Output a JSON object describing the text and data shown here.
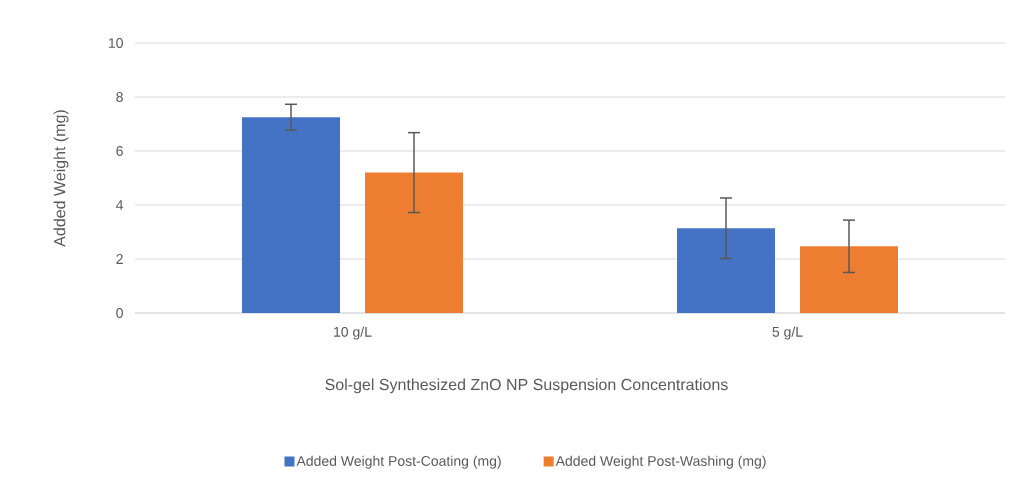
{
  "chart_data": {
    "type": "bar",
    "xlabel": "Sol-gel Synthesized ZnO NP Suspension Concentrations",
    "ylabel": "Added Weight (mg)",
    "categories": [
      "10 g/L",
      "5 g/L"
    ],
    "series": [
      {
        "name": "Added Weight Post-Coating (mg)",
        "color": "#4472c4",
        "values": [
          7.25,
          3.14
        ],
        "errors": [
          0.48,
          1.12
        ]
      },
      {
        "name": "Added Weight Post-Washing (mg)",
        "color": "#ed7d31",
        "values": [
          5.2,
          2.47
        ],
        "errors": [
          1.48,
          0.97
        ]
      }
    ],
    "ylim": [
      0,
      10
    ],
    "yticks": [
      0,
      2,
      4,
      6,
      8,
      10
    ],
    "grid": "y",
    "legend": "bottom"
  }
}
